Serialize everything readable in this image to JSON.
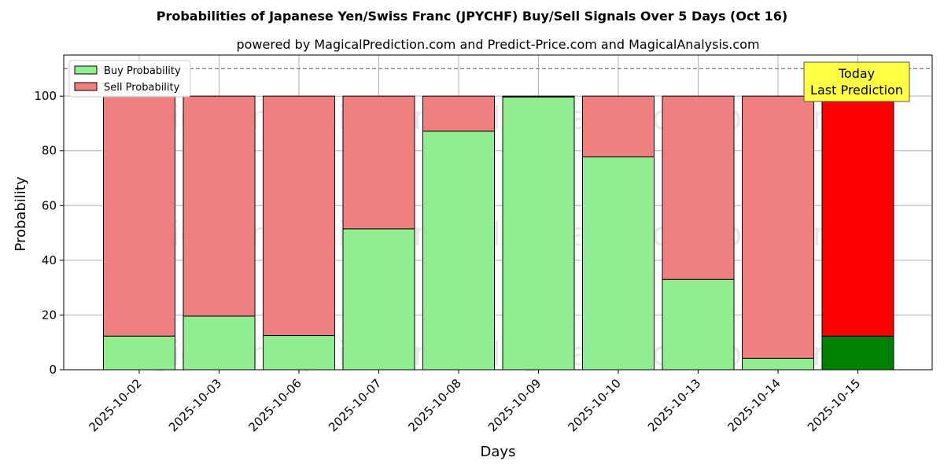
{
  "chart_data": {
    "type": "bar",
    "stacked": true,
    "title": "Probabilities of Japanese Yen/Swiss Franc (JPYCHF) Buy/Sell Signals Over 5 Days (Oct 16)",
    "subtitle": "powered by MagicalPrediction.com and Predict-Price.com and MagicalAnalysis.com",
    "xlabel": "Days",
    "ylabel": "Probability",
    "ylim": [
      0,
      115
    ],
    "yticks": [
      0,
      20,
      40,
      60,
      80,
      100
    ],
    "threshold_line": 110,
    "grid": true,
    "legend_position": "top-left",
    "categories": [
      "2025-10-02",
      "2025-10-03",
      "2025-10-06",
      "2025-10-07",
      "2025-10-08",
      "2025-10-09",
      "2025-10-10",
      "2025-10-13",
      "2025-10-14",
      "2025-10-15"
    ],
    "series": [
      {
        "name": "Buy Probability",
        "color": "#90ee90",
        "highlight_color": "#008000",
        "values": [
          12.3,
          19.6,
          12.5,
          51.5,
          87.2,
          99.7,
          77.8,
          33.0,
          4.2,
          12.3
        ]
      },
      {
        "name": "Sell Probability",
        "color": "#f08080",
        "highlight_color": "#ff0000",
        "values": [
          87.7,
          80.4,
          87.5,
          48.5,
          12.8,
          0.3,
          22.2,
          67.0,
          95.8,
          87.7
        ]
      }
    ],
    "highlight_index": 9,
    "annotation": {
      "line1": "Today",
      "line2": "Last Prediction",
      "background": "#ffff44"
    },
    "watermarks": [
      "MagicalAnalysis.com",
      "MagicalPrediction.com"
    ]
  }
}
